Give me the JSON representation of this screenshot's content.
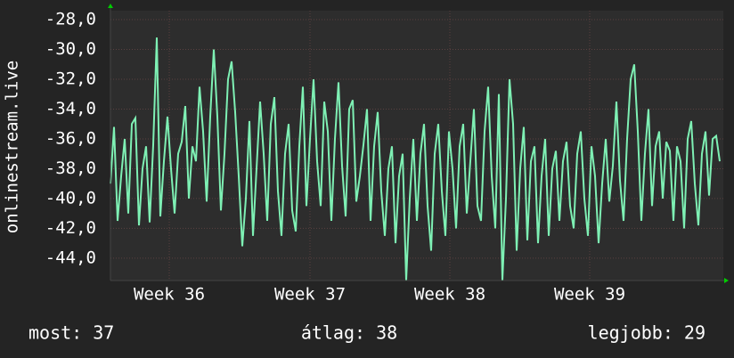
{
  "chart_data": {
    "type": "line",
    "ylabel": "onlinestream.live",
    "color": "#7ef0b4",
    "grid": true,
    "ylim": [
      -45.5,
      -27.4
    ],
    "yticks": [
      {
        "value": -44,
        "label": "-44,0"
      },
      {
        "value": -42,
        "label": "-42,0"
      },
      {
        "value": -40,
        "label": "-40,0"
      },
      {
        "value": -38,
        "label": "-38,0"
      },
      {
        "value": -36,
        "label": "-36,0"
      },
      {
        "value": -34,
        "label": "-34,0"
      },
      {
        "value": -32,
        "label": "-32,0"
      },
      {
        "value": -30,
        "label": "-30,0"
      },
      {
        "value": -28,
        "label": "-28,0"
      }
    ],
    "xlim": [
      0,
      172
    ],
    "xticks": [
      {
        "value": 16.5,
        "label": "Week 36"
      },
      {
        "value": 56,
        "label": "Week 37"
      },
      {
        "value": 95.25,
        "label": "Week 38"
      },
      {
        "value": 134.5,
        "label": "Week 39"
      }
    ],
    "values": [
      -39,
      -35.2,
      -41.5,
      -38.5,
      -36,
      -41,
      -35,
      -34.6,
      -41.8,
      -38,
      -36.5,
      -41.6,
      -36.4,
      -29.2,
      -41.2,
      -37.5,
      -34.5,
      -38,
      -41,
      -37,
      -36.2,
      -33.8,
      -40,
      -36.5,
      -37.5,
      -32.5,
      -35.5,
      -40.2,
      -34.5,
      -30,
      -34.5,
      -40.8,
      -37,
      -32,
      -30.8,
      -34.2,
      -38.5,
      -43.2,
      -40,
      -34.8,
      -42.5,
      -38,
      -33.5,
      -37,
      -41.5,
      -35,
      -33.2,
      -39.5,
      -42.5,
      -37,
      -35,
      -40.8,
      -42.2,
      -36.5,
      -32.5,
      -40.5,
      -36,
      -32,
      -37.5,
      -40.5,
      -33.5,
      -35.5,
      -41.5,
      -36,
      -32.2,
      -37.8,
      -41.2,
      -34,
      -33.4,
      -40.2,
      -38.5,
      -36.4,
      -34,
      -41.5,
      -36.5,
      -34.2,
      -39.5,
      -42.5,
      -38,
      -36.5,
      -43,
      -38.5,
      -37,
      -45.5,
      -40,
      -36,
      -41.5,
      -37,
      -35,
      -40.5,
      -43.5,
      -37,
      -35,
      -39.5,
      -42.5,
      -35.5,
      -38,
      -42,
      -36.5,
      -35,
      -41,
      -37.5,
      -34,
      -40.5,
      -41.5,
      -35.5,
      -32.5,
      -38.5,
      -42,
      -33,
      -45.5,
      -40,
      -32,
      -35,
      -43.5,
      -38,
      -35.2,
      -42.8,
      -37.5,
      -36.5,
      -43,
      -38.5,
      -36,
      -42.5,
      -38,
      -36.8,
      -41.5,
      -37.5,
      -36.2,
      -40.5,
      -42,
      -37,
      -35.5,
      -40,
      -42.5,
      -36.5,
      -38.5,
      -43,
      -39,
      -36,
      -40.2,
      -37.8,
      -33.5,
      -38.8,
      -41.5,
      -36,
      -32,
      -31,
      -35.5,
      -41.5,
      -37,
      -34,
      -40.5,
      -36.5,
      -35.5,
      -40,
      -36.2,
      -36.8,
      -41.5,
      -36.5,
      -37.5,
      -42,
      -36,
      -34.8,
      -39,
      -41.8,
      -37,
      -35.5,
      -39.8,
      -36,
      -35.8,
      -37.5
    ],
    "footer": [
      "most: 37",
      "átlag: 38",
      "legjobb: 29"
    ]
  }
}
